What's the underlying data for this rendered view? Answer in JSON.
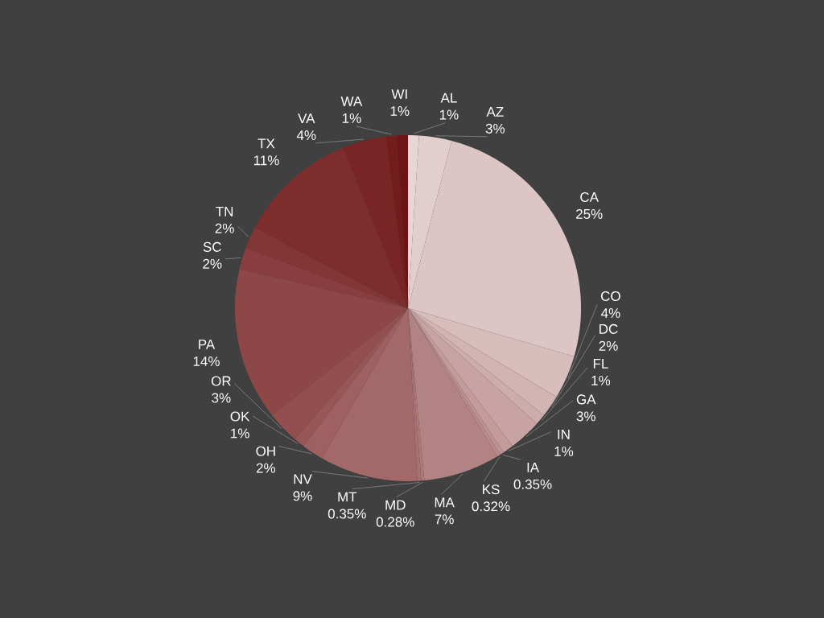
{
  "chart_data": {
    "type": "pie",
    "categories": [
      "AL",
      "AZ",
      "CA",
      "CO",
      "DC",
      "FL",
      "GA",
      "IN",
      "IA",
      "KS",
      "MA",
      "MD",
      "MT",
      "NV",
      "OH",
      "OK",
      "OR",
      "PA",
      "SC",
      "TN",
      "TX",
      "VA",
      "WA",
      "WI"
    ],
    "values": [
      1,
      3,
      25,
      4,
      2,
      1,
      3,
      1,
      0.35,
      0.32,
      7,
      0.28,
      0.35,
      9,
      2,
      1,
      3,
      14,
      2,
      2,
      11,
      4,
      1,
      1
    ],
    "value_labels": [
      "1%",
      "3%",
      "25%",
      "4%",
      "2%",
      "1%",
      "3%",
      "1%",
      "0.35%",
      "0.32%",
      "7%",
      "0.28%",
      "0.35%",
      "9%",
      "2%",
      "1%",
      "3%",
      "14%",
      "2%",
      "2%",
      "11%",
      "4%",
      "1%",
      "1%"
    ],
    "colors": [
      "#e8d6d6",
      "#e3cece",
      "#ddc5c5",
      "#d8bdbd",
      "#d3b4b4",
      "#cdacac",
      "#c8a3a3",
      "#c39b9b",
      "#be9292",
      "#b88a8a",
      "#b38282",
      "#ae7979",
      "#a87171",
      "#a36868",
      "#9e6060",
      "#985757",
      "#934f4f",
      "#8e4747",
      "#883e3e",
      "#833636",
      "#7e2d2d",
      "#792525",
      "#731c1c",
      "#6e1414"
    ]
  }
}
